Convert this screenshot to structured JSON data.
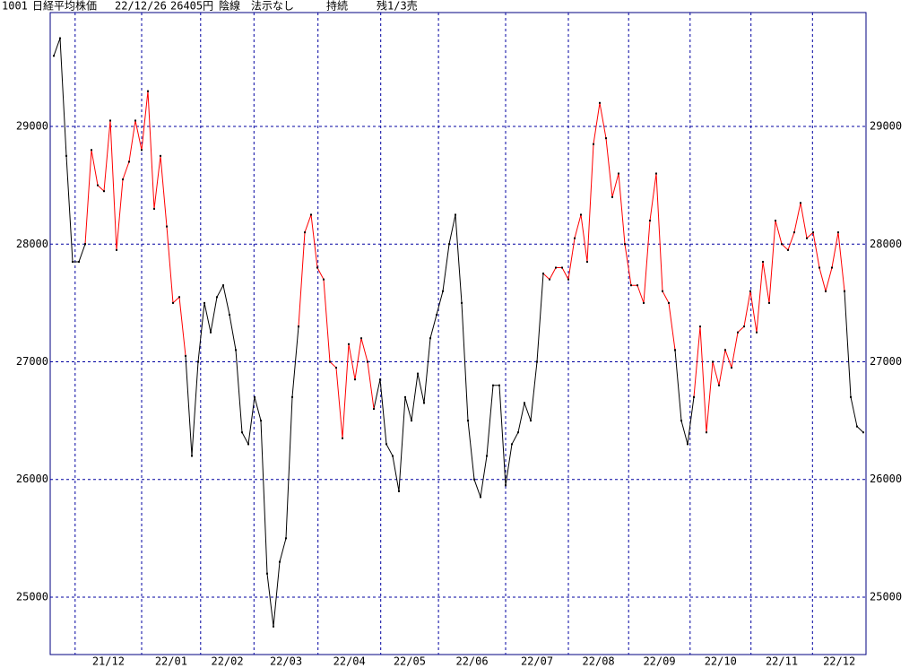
{
  "header": {
    "code": "1001",
    "name": "日経平均株価",
    "date": "22/12/26",
    "price": "26405円",
    "candle": "陰線",
    "instruction": "法示なし",
    "status": "持続",
    "position": "残1/3売"
  },
  "chart_data": {
    "type": "line",
    "xlim": [
      0,
      129
    ],
    "xticks": [
      {
        "value": 3.4,
        "label": "21/12"
      },
      {
        "value": 14,
        "label": "22/01"
      },
      {
        "value": 23.4,
        "label": "22/02"
      },
      {
        "value": 31.9,
        "label": "22/03"
      },
      {
        "value": 42.1,
        "label": "22/04"
      },
      {
        "value": 52.1,
        "label": "22/05"
      },
      {
        "value": 61.3,
        "label": "22/06"
      },
      {
        "value": 72,
        "label": "22/07"
      },
      {
        "value": 82,
        "label": "22/08"
      },
      {
        "value": 91.6,
        "label": "22/09"
      },
      {
        "value": 101.4,
        "label": "22/10"
      },
      {
        "value": 111.1,
        "label": "22/11"
      },
      {
        "value": 120.9,
        "label": "22/12"
      }
    ],
    "ylim": [
      24512,
      29968
    ],
    "yticks": [
      25000,
      26000,
      27000,
      28000,
      29000
    ],
    "grid": true,
    "marker_color": "#000000",
    "series": [
      {
        "color": "#000000",
        "values": [
          29600,
          29750,
          28750,
          27850,
          27850,
          28000,
          null,
          null,
          null,
          null,
          null,
          null,
          null,
          null,
          null,
          null,
          null,
          null,
          null,
          null,
          null,
          27050,
          26200,
          27000,
          27500,
          27250,
          27550,
          27650,
          27400,
          27100,
          26400,
          26300,
          26700,
          26500,
          25200,
          24750,
          25300,
          25500,
          26700,
          27300,
          null,
          null,
          null,
          null,
          null,
          null,
          null,
          null,
          null,
          null,
          null,
          26600,
          26850,
          26300,
          26200,
          25900,
          26700,
          26500,
          26900,
          26650,
          27200,
          27400,
          27600,
          28000,
          28250,
          27500,
          26500,
          26000,
          25850,
          26200,
          26800,
          26800,
          25950,
          26300,
          26400,
          26650,
          26500,
          27000,
          27750,
          null,
          null,
          null,
          null,
          null,
          null,
          null,
          null,
          null,
          null,
          null,
          null,
          null,
          null,
          null,
          null,
          null,
          null,
          null,
          null,
          27100,
          26500,
          26300,
          26700,
          null,
          null,
          null,
          null,
          null,
          null,
          null,
          null,
          null,
          null,
          null,
          null,
          null,
          null,
          null,
          null,
          null,
          null,
          null,
          null,
          null,
          null,
          null,
          27600,
          26700,
          26450,
          26400
        ]
      },
      {
        "color": "#ff0000",
        "values": [
          null,
          null,
          null,
          null,
          null,
          28000,
          28800,
          28500,
          28450,
          29050,
          27950,
          28550,
          28700,
          29050,
          28800,
          29300,
          28300,
          28750,
          28150,
          27500,
          27550,
          27050,
          null,
          null,
          null,
          null,
          null,
          null,
          null,
          null,
          null,
          null,
          null,
          null,
          null,
          null,
          null,
          null,
          null,
          27300,
          28100,
          28250,
          27800,
          27700,
          27000,
          26950,
          26350,
          27150,
          26850,
          27200,
          27000,
          26600,
          null,
          null,
          null,
          null,
          null,
          null,
          null,
          null,
          null,
          null,
          null,
          null,
          null,
          null,
          null,
          null,
          null,
          null,
          null,
          null,
          null,
          null,
          null,
          null,
          null,
          null,
          27750,
          27700,
          27800,
          27800,
          27700,
          28050,
          28250,
          27850,
          28850,
          29200,
          28900,
          28400,
          28600,
          28000,
          27650,
          27650,
          27500,
          28200,
          28600,
          27600,
          27500,
          27100,
          null,
          null,
          26700,
          27300,
          26400,
          27000,
          26800,
          27100,
          26950,
          27250,
          27300,
          27600,
          27250,
          27850,
          27500,
          28200,
          28000,
          27950,
          28100,
          28350,
          28050,
          28100,
          27800,
          27600,
          27800,
          28100,
          27600,
          null,
          null,
          null
        ]
      }
    ]
  }
}
